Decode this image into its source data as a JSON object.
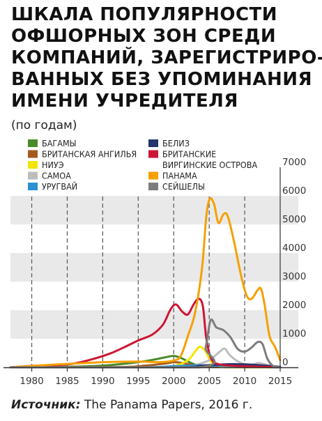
{
  "title_lines": [
    "ШКАЛА ПОПУЛЯРНОСТИ",
    "ОФШОРНЫХ ЗОН СРЕДИ",
    "КОМПАНИЙ, ЗАРЕГИСТРИРО-",
    "ВАННЫХ БЕЗ УПОМИНАНИЯ",
    "ИМЕНИ УЧРЕДИТЕЛЯ"
  ],
  "subtitle": "(по годам)",
  "source": {
    "label": "Источник:",
    "text": " The Panama Papers, 2016 г."
  },
  "chart_data": {
    "type": "line",
    "xlim": [
      1977,
      2015
    ],
    "ylim": [
      0,
      7000
    ],
    "x_ticks": [
      1980,
      1985,
      1990,
      1995,
      2000,
      2005,
      2010,
      2015
    ],
    "y_ticks": [
      0,
      1000,
      2000,
      3000,
      4000,
      5000,
      6000,
      7000
    ],
    "grid": "horizontal bands, dashed vertical lines",
    "legend_position": "top",
    "series": [
      {
        "name": "БАГАМЫ",
        "color": "#4a8a2a",
        "points": [
          [
            1977,
            0
          ],
          [
            1985,
            20
          ],
          [
            1990,
            60
          ],
          [
            1994,
            150
          ],
          [
            1997,
            260
          ],
          [
            1999,
            360
          ],
          [
            2000,
            400
          ],
          [
            2001,
            330
          ],
          [
            2003,
            100
          ],
          [
            2005,
            30
          ],
          [
            2015,
            0
          ]
        ]
      },
      {
        "name": "БРИТАНСКАЯ АНГИЛЬЯ",
        "color": "#a35a1e",
        "points": [
          [
            1977,
            0
          ],
          [
            1992,
            10
          ],
          [
            1996,
            60
          ],
          [
            1999,
            140
          ],
          [
            2000,
            180
          ],
          [
            2001,
            160
          ],
          [
            2003,
            70
          ],
          [
            2005,
            30
          ],
          [
            2015,
            0
          ]
        ]
      },
      {
        "name": "НИУЭ",
        "color": "#f2e600",
        "points": [
          [
            1977,
            0
          ],
          [
            1998,
            0
          ],
          [
            2000,
            40
          ],
          [
            2002,
            250
          ],
          [
            2003,
            550
          ],
          [
            2003.7,
            720
          ],
          [
            2004.5,
            550
          ],
          [
            2005.3,
            180
          ],
          [
            2006.5,
            50
          ],
          [
            2008,
            0
          ],
          [
            2015,
            0
          ]
        ]
      },
      {
        "name": "САМОА",
        "color": "#bdbdbd",
        "points": [
          [
            1977,
            0
          ],
          [
            2001,
            0
          ],
          [
            2003,
            80
          ],
          [
            2005,
            250
          ],
          [
            2006.5,
            550
          ],
          [
            2007.2,
            650
          ],
          [
            2008,
            400
          ],
          [
            2009.5,
            150
          ],
          [
            2011,
            100
          ],
          [
            2012,
            150
          ],
          [
            2013.5,
            60
          ],
          [
            2015,
            0
          ]
        ]
      },
      {
        "name": "УРУГВАЙ",
        "color": "#2b8fd2",
        "points": [
          [
            1977,
            0
          ],
          [
            1995,
            0
          ],
          [
            2000,
            40
          ],
          [
            2003,
            70
          ],
          [
            2006,
            60
          ],
          [
            2010,
            30
          ],
          [
            2015,
            0
          ]
        ]
      },
      {
        "name": "БЕЛИЗ",
        "color": "#24356e",
        "points": [
          [
            1977,
            0
          ],
          [
            2000,
            0
          ],
          [
            2004,
            60
          ],
          [
            2008,
            110
          ],
          [
            2011,
            90
          ],
          [
            2015,
            20
          ]
        ]
      },
      {
        "name": "БРИТАНСКИЕ ВИРГИНСКИЕ ОСТРОВА",
        "color": "#cc1533",
        "points": [
          [
            1977,
            0
          ],
          [
            1980,
            50
          ],
          [
            1985,
            100
          ],
          [
            1988,
            250
          ],
          [
            1991,
            480
          ],
          [
            1993,
            700
          ],
          [
            1995,
            940
          ],
          [
            1997,
            1150
          ],
          [
            1998.5,
            1500
          ],
          [
            1999.5,
            2000
          ],
          [
            2000.3,
            2200
          ],
          [
            2001.2,
            1950
          ],
          [
            2002,
            1850
          ],
          [
            2002.8,
            2200
          ],
          [
            2003.5,
            2400
          ],
          [
            2004.1,
            2150
          ],
          [
            2004.6,
            1000
          ],
          [
            2005.3,
            300
          ],
          [
            2006.5,
            100
          ],
          [
            2010,
            40
          ],
          [
            2015,
            0
          ]
        ]
      },
      {
        "name": "ПАНАМА",
        "color": "#f5a000",
        "points": [
          [
            1977,
            0
          ],
          [
            1980,
            50
          ],
          [
            1985,
            120
          ],
          [
            1990,
            180
          ],
          [
            1995,
            200
          ],
          [
            1998,
            180
          ],
          [
            2000,
            240
          ],
          [
            2001,
            400
          ],
          [
            2002,
            1100
          ],
          [
            2003,
            1900
          ],
          [
            2004,
            3500
          ],
          [
            2004.6,
            5300
          ],
          [
            2005.1,
            5900
          ],
          [
            2005.7,
            5700
          ],
          [
            2006.3,
            5050
          ],
          [
            2007,
            5350
          ],
          [
            2007.6,
            5300
          ],
          [
            2008.5,
            4400
          ],
          [
            2009.5,
            3200
          ],
          [
            2010.3,
            2500
          ],
          [
            2011,
            2400
          ],
          [
            2011.8,
            2700
          ],
          [
            2012.3,
            2750
          ],
          [
            2012.8,
            2200
          ],
          [
            2013.5,
            1100
          ],
          [
            2014.3,
            700
          ],
          [
            2015,
            250
          ]
        ]
      },
      {
        "name": "СЕЙШЕЛЫ",
        "color": "#7c7c7c",
        "points": [
          [
            1977,
            0
          ],
          [
            2003.5,
            0
          ],
          [
            2004.5,
            700
          ],
          [
            2005.2,
            1650
          ],
          [
            2006,
            1400
          ],
          [
            2007,
            1300
          ],
          [
            2008,
            1050
          ],
          [
            2009,
            650
          ],
          [
            2010,
            550
          ],
          [
            2011,
            700
          ],
          [
            2011.8,
            880
          ],
          [
            2012.5,
            820
          ],
          [
            2013.2,
            300
          ],
          [
            2014,
            50
          ],
          [
            2015,
            0
          ]
        ]
      }
    ]
  }
}
